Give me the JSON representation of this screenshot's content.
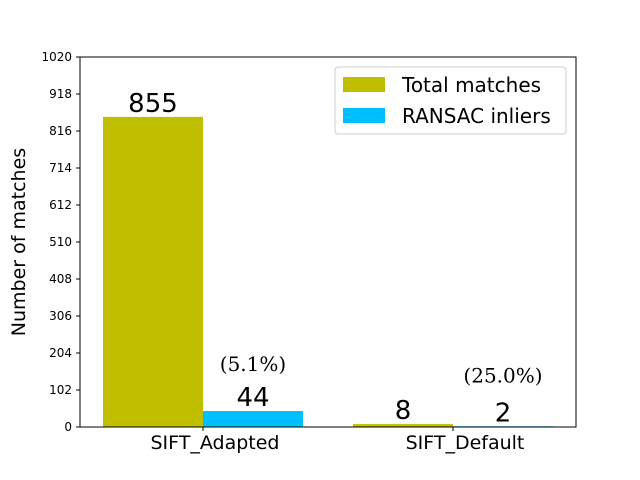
{
  "chart_data": {
    "type": "bar",
    "categories": [
      "SIFT_Adapted",
      "SIFT_Default"
    ],
    "series": [
      {
        "name": "Total matches",
        "values": [
          855,
          8
        ],
        "color": "#bfbf00"
      },
      {
        "name": "RANSAC inliers",
        "values": [
          44,
          2
        ],
        "color": "#00bfff"
      }
    ],
    "value_labels": [
      [
        "855",
        "8"
      ],
      [
        "44",
        "2"
      ]
    ],
    "annotations": [
      "(5.1%)",
      "(25.0%)"
    ],
    "ylabel": "Number of matches",
    "ylim": [
      0,
      1020
    ],
    "yticks": [
      0,
      102,
      204,
      306,
      408,
      510,
      612,
      714,
      816,
      918,
      1020
    ],
    "legend": "top-right",
    "grid": false
  }
}
